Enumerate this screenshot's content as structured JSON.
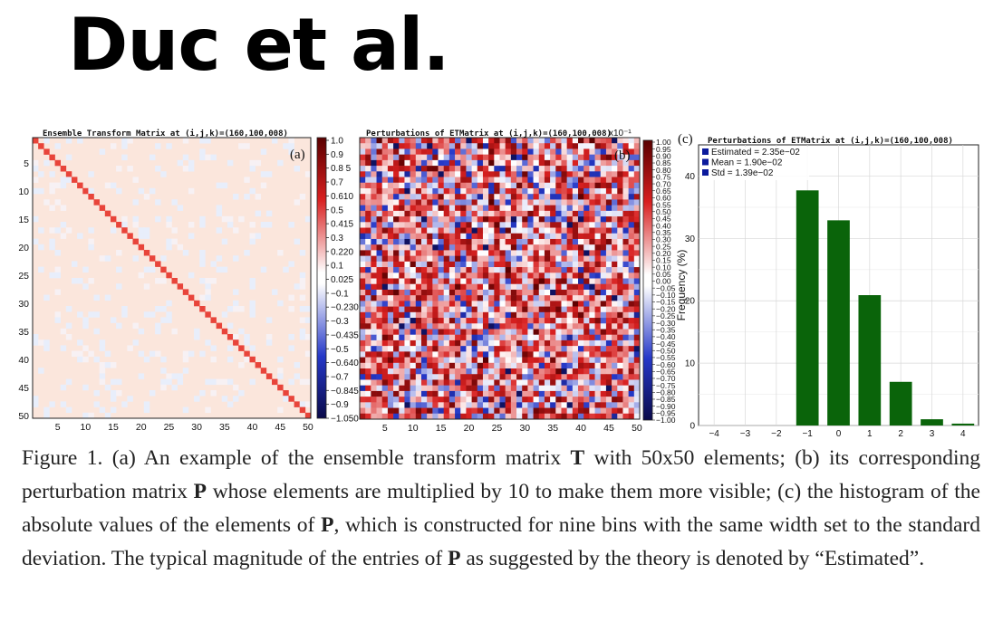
{
  "slide": {
    "title": "Duc et al."
  },
  "panel_a": {
    "title": "Ensemble Transform Matrix at (i,j,k)=(160,100,008)",
    "label": "(a)",
    "y_ticks": [
      "5",
      "10",
      "15",
      "20",
      "25",
      "30",
      "35",
      "40",
      "45",
      "50"
    ],
    "x_ticks": [
      "5",
      "10",
      "15",
      "20",
      "25",
      "30",
      "35",
      "40",
      "45",
      "50"
    ],
    "colorbar_ticks": [
      "1.0",
      "0.9",
      "0.8 5",
      "0.7",
      "0.610",
      "0.5",
      "0.415",
      "0.3",
      "0.220",
      "0.1",
      "0.025",
      "−0.1",
      "−0.230",
      "−0.3",
      "−0.435",
      "−0.5",
      "−0.640",
      "−0.7",
      "−0.845",
      "−0.9",
      "−1.050"
    ]
  },
  "panel_b": {
    "title": "Perturbations of ETMatrix at (i,j,k)=(160,100,008)",
    "label": "(b)",
    "x_ticks": [
      "5",
      "10",
      "15",
      "20",
      "25",
      "30",
      "35",
      "40",
      "45",
      "50"
    ],
    "colorbar_exponent": "x10⁻¹",
    "colorbar_ticks": [
      "1.00",
      "0.95",
      "0.90",
      "0.85",
      "0.80",
      "0.75",
      "0.70",
      "0.65",
      "0.60",
      "0.55",
      "0.50",
      "0.45",
      "0.40",
      "0.35",
      "0.30",
      "0.25",
      "0.20",
      "0.15",
      "0.10",
      "0.05",
      "0.00",
      "−0.05",
      "−0.10",
      "−0.15",
      "−0.20",
      "−0.25",
      "−0.30",
      "−0.35",
      "−0.40",
      "−0.45",
      "−0.50",
      "−0.55",
      "−0.60",
      "−0.65",
      "−0.70",
      "−0.75",
      "−0.80",
      "−0.85",
      "−0.90",
      "−0.95",
      "−1.00"
    ]
  },
  "panel_c": {
    "title": "Perturbations of ETMatrix at (i,j,k)=(160,100,008)",
    "label": "(c)",
    "legend": [
      "Estimated = 2.35e−02",
      "Mean = 1.90e−02",
      "Std = 1.39e−02"
    ],
    "legend_color": "#0b1a9c",
    "bar_color": "#0a640a"
  },
  "chart_data": [
    {
      "type": "heatmap",
      "title": "Ensemble Transform Matrix at (i,j,k)=(160,100,008)",
      "rows": 50,
      "cols": 50,
      "diagonal_value": 1.0,
      "off_diagonal_typical": 0.02,
      "colorbar_range": [
        -1.05,
        1.0
      ],
      "colormap": [
        "#0a0a4a",
        "#2538c8",
        "#ffffff",
        "#d82020",
        "#5a0000"
      ]
    },
    {
      "type": "heatmap",
      "title": "Perturbations of ETMatrix at (i,j,k)=(160,100,008)",
      "rows": 50,
      "cols": 50,
      "colorbar_range": [
        -1.0,
        1.0
      ],
      "colorbar_scale": "x10^-1",
      "colormap": [
        "#0a0a4a",
        "#2538c8",
        "#ffffff",
        "#d82020",
        "#5a0000"
      ]
    },
    {
      "type": "bar",
      "title": "Perturbations of ETMatrix at (i,j,k)=(160,100,008)",
      "categories": [
        "−4",
        "−3",
        "−2",
        "−1",
        "0",
        "1",
        "2",
        "3",
        "4"
      ],
      "values": [
        0,
        0,
        0,
        37.7,
        32.9,
        20.9,
        7.0,
        1.0,
        0.3
      ],
      "ylabel": "Frequency (%)",
      "ylim": [
        0,
        45
      ],
      "y_ticks": [
        "0",
        "10",
        "20",
        "30",
        "40"
      ],
      "grid": true,
      "legend_position": "top-left"
    }
  ],
  "caption": {
    "text": "Figure 1. (a) An example of the ensemble transform matrix T with 50x50 elements; (b) its corresponding perturbation matrix P whose elements are multiplied by 10 to make them more visible; (c) the histogram of the absolute values of the elements of P, which is constructed for nine bins with the same width set to the standard deviation. The typical magnitude of the entries of P as suggested by the theory is denoted by “Estimated”."
  }
}
